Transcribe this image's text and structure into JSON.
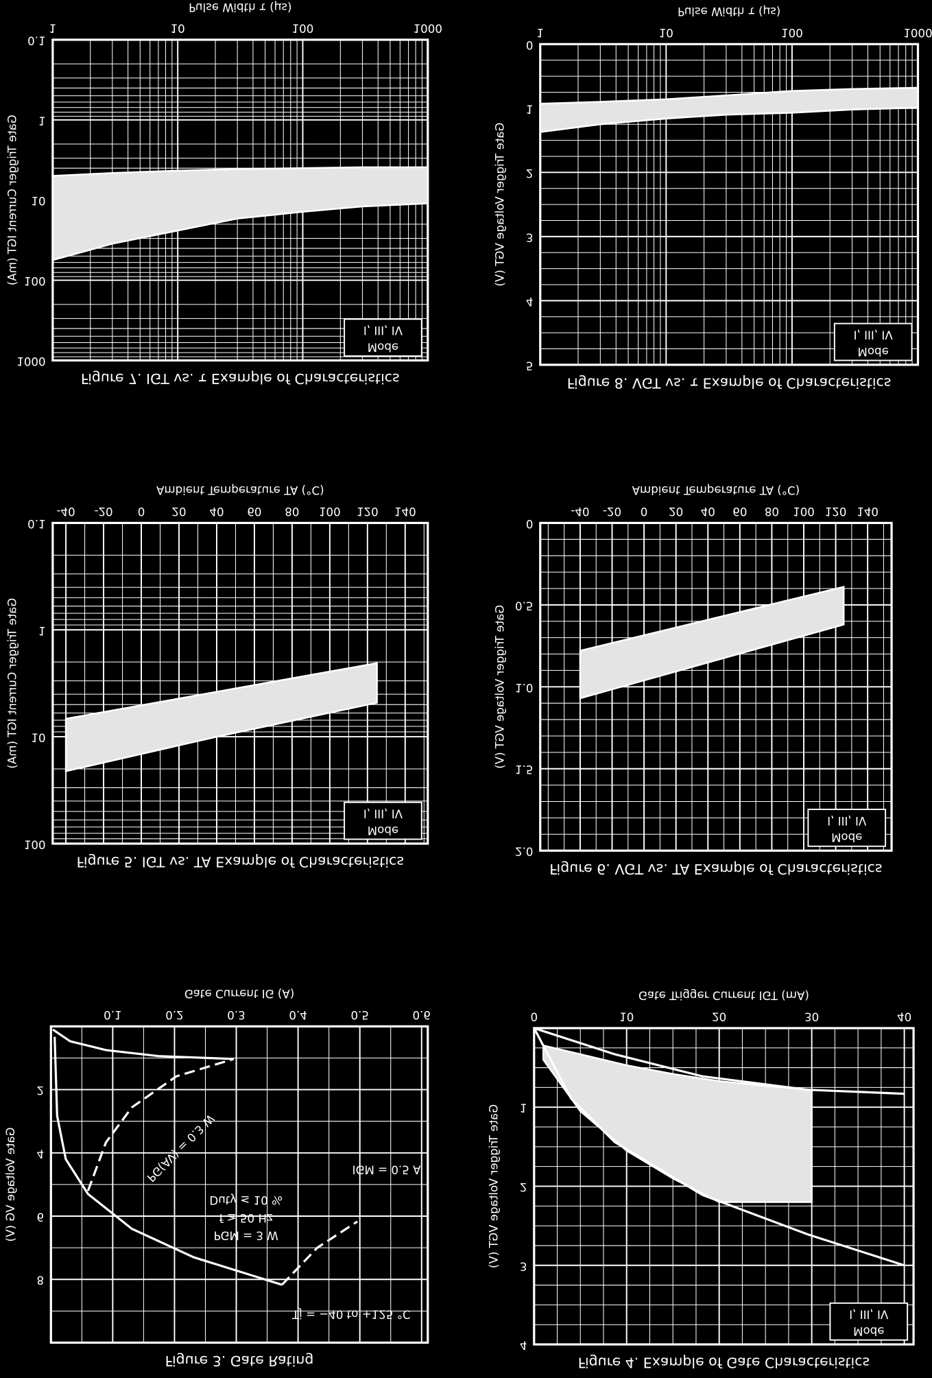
{
  "chart_data": [
    {
      "type": "line",
      "title": "Figure 3. Gate Rating",
      "x_label": "Gate Current IG (A)",
      "y_label": "Gate Voltage VG (V)",
      "xlim": [
        0,
        0.61
      ],
      "ylim": [
        0,
        10
      ],
      "xticks": [
        0.1,
        0.2,
        0.3,
        0.4,
        0.5,
        0.6
      ],
      "yticks": [
        2,
        4,
        6,
        8
      ],
      "grid": true,
      "series": [
        {
          "color": "#ffffff",
          "dashed": false,
          "x": [
            0.003,
            0.031,
            0.089,
            0.174,
            0.296
          ],
          "values": [
            0.1,
            0.47,
            0.75,
            0.94,
            1.03
          ]
        },
        {
          "color": "#ffffff",
          "dashed": true,
          "x": [
            0.06,
            0.089,
            0.131,
            0.203,
            0.296
          ],
          "values": [
            5.2,
            3.67,
            2.56,
            1.58,
            1.03
          ]
        },
        {
          "color": "#ffffff",
          "dashed": false,
          "x": [
            0.006,
            0.01,
            0.024,
            0.06,
            0.131,
            0.231,
            0.374
          ],
          "values": [
            0.33,
            2.83,
            4.2,
            5.3,
            6.4,
            7.3,
            8.17
          ]
        },
        {
          "color": "#ffffff",
          "dashed": true,
          "x": [
            0.374,
            0.431,
            0.496
          ],
          "values": [
            8.17,
            7.0,
            6.17
          ]
        }
      ],
      "annotations": [
        "Tj = −40 to +125 °C",
        "PGM = 3 W",
        "f ≥ 50 Hz",
        "Duty ≤ 10 %",
        "IGM = 0.5 A",
        "PG(AV) = 0.3 W"
      ]
    },
    {
      "type": "line",
      "title": "Figure 4. Example of Gate Characteristics",
      "x_label": "Gate Trigger Current IGT (mA)",
      "y_label": "Gate Trigger Voltage VGT (V)",
      "xlim": [
        0,
        41
      ],
      "ylim": [
        0,
        4
      ],
      "xticks": [
        0,
        10,
        20,
        30,
        40
      ],
      "yticks": [
        1,
        2,
        3,
        4
      ],
      "grid": true,
      "series": [
        {
          "color": "#ffffff",
          "dashed": false,
          "x": [
            0,
            4,
            8.7,
            18.2,
            29.6,
            40
          ],
          "values": [
            0,
            0.89,
            1.44,
            2.11,
            2.61,
            3
          ]
        },
        {
          "color": "#ffffff",
          "dashed": false,
          "x": [
            0,
            8.7,
            18.2,
            29.6,
            40
          ],
          "values": [
            0,
            0.33,
            0.61,
            0.78,
            0.83
          ]
        }
      ],
      "band": {
        "color": "#e4e4e4",
        "x": [
          1,
          5,
          10,
          15,
          20,
          25,
          30
        ],
        "min": [
          0.22,
          0.33,
          0.47,
          0.58,
          0.67,
          0.73,
          0.78
        ],
        "max": [
          0.4,
          1.05,
          1.55,
          1.9,
          2.2,
          2.2,
          2.2
        ]
      },
      "mode_label": "Mode",
      "mode_value": "I, III, IV"
    },
    {
      "type": "band",
      "title": "Figure 5. IGT vs. TA Example of Characteristics",
      "x_label": "Ambient Temperature TA (°C)",
      "y_label": "Gate Trigger Current IGT (mA)",
      "xlim": [
        -47,
        152
      ],
      "ylim": [
        0.1,
        100
      ],
      "ylog": true,
      "xticks": [
        -40,
        -20,
        0,
        20,
        40,
        60,
        80,
        100,
        120,
        140
      ],
      "yticks": [
        0.1,
        1,
        10,
        100
      ],
      "grid": true,
      "band": {
        "color": "#e4e4e4",
        "x": [
          -40,
          40,
          125
        ],
        "min": [
          6.8,
          3.8,
          2.05
        ],
        "max": [
          21,
          10,
          4.8
        ]
      },
      "mode_label": "Mode",
      "mode_value": "I, III, IV"
    },
    {
      "type": "band",
      "title": "Figure 6. VGT vs. TA Example of Characteristics",
      "x_label": "Ambient Temperature TA (°C)",
      "y_label": "Gate Trigger Voltage VGT (V)",
      "xlim": [
        -65,
        155
      ],
      "ylim": [
        0,
        2
      ],
      "xticks": [
        -40,
        -20,
        0,
        20,
        40,
        60,
        80,
        100,
        120,
        140
      ],
      "yticks": [
        0,
        0.5,
        {
          "value": 1,
          "label": "1.0"
        },
        1.5,
        {
          "value": 2,
          "label": "2.0"
        }
      ],
      "grid": true,
      "band": {
        "color": "#e4e4e4",
        "x": [
          -40,
          125
        ],
        "min": [
          0.78,
          0.39
        ],
        "max": [
          1.07,
          0.62
        ]
      },
      "mode_label": "Mode",
      "mode_value": "I, III, IV"
    },
    {
      "type": "band",
      "title": "Figure 7. IGT vs. τ Example of Characteristics",
      "x_label": "Pulse Width τ (μs)",
      "y_label": "Gate Trigger Current IGT (mA)",
      "xlim": [
        1,
        1000
      ],
      "ylim": [
        0.1,
        1000
      ],
      "xlog": true,
      "ylog": true,
      "xticks": [
        1,
        10,
        100,
        1000
      ],
      "yticks": [
        0.1,
        1,
        10,
        100,
        1000
      ],
      "grid": true,
      "band": {
        "color": "#e4e4e4",
        "x": [
          1,
          3,
          10,
          30,
          100,
          300,
          1000
        ],
        "min": [
          5,
          4.6,
          4.3,
          4.1,
          4,
          3.9,
          3.9
        ],
        "max": [
          56,
          35,
          24,
          17,
          14,
          12,
          11
        ]
      },
      "mode_label": "Mode",
      "mode_value": "I, III, IV"
    },
    {
      "type": "band",
      "title": "Figure 8. VGT vs. τ Example of Characteristics",
      "x_label": "Pulse Width τ (μs)",
      "y_label": "Gate Trigger Voltage VGT (V)",
      "xlim": [
        1,
        1000
      ],
      "ylim": [
        0,
        5
      ],
      "xlog": true,
      "xticks": [
        1,
        10,
        100,
        1000
      ],
      "yticks": [
        0,
        1,
        2,
        3,
        4,
        5
      ],
      "grid": true,
      "band": {
        "color": "#e4e4e4",
        "x": [
          1,
          3,
          10,
          30,
          100,
          300,
          1000
        ],
        "min": [
          0.93,
          0.9,
          0.86,
          0.8,
          0.73,
          0.7,
          0.68
        ],
        "max": [
          1.37,
          1.25,
          1.16,
          1.1,
          1.07,
          1.02,
          0.99
        ]
      },
      "mode_label": "Mode",
      "mode_value": "I, III, IV"
    }
  ]
}
